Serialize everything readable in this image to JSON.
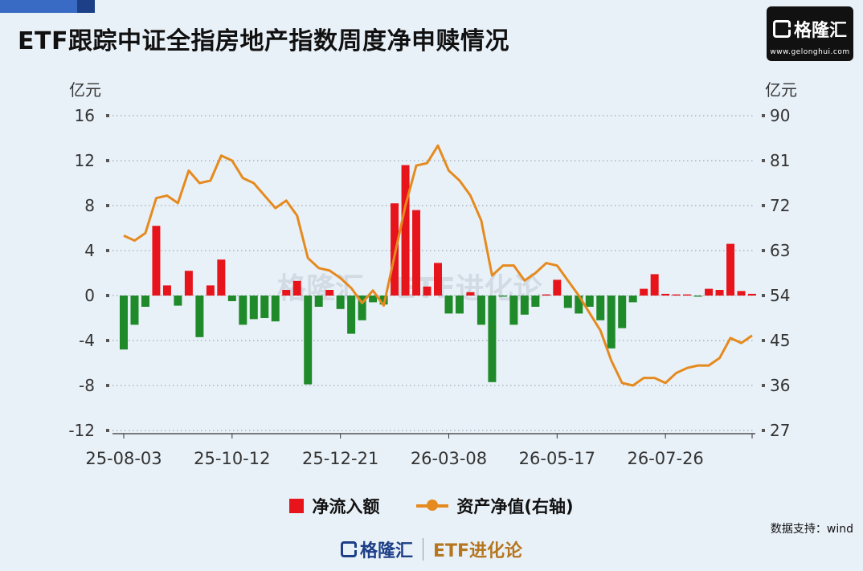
{
  "title": "ETF跟踪中证全指房地产指数周度净申赎情况",
  "logo": {
    "brand": "格隆汇",
    "url": "www.gelonghui.com"
  },
  "units": {
    "left": "亿元",
    "right": "亿元"
  },
  "legend": {
    "bar": "净流入额",
    "line": "资产净值(右轴)"
  },
  "source": "数据支持：wind",
  "footer": {
    "brand": "格隆汇",
    "etf": "ETF进化论"
  },
  "watermark": {
    "brand": "格隆汇",
    "etf": "ETF进化论"
  },
  "colors": {
    "bar_pos": "#e8141c",
    "bar_neg": "#1f8a2a",
    "line": "#e58a1f"
  },
  "chart_data": {
    "type": "bar",
    "x_tick_labels": [
      "25-08-03",
      "25-10-12",
      "25-12-21",
      "26-03-08",
      "26-05-17",
      "26-07-26"
    ],
    "y_left": {
      "lim": [
        -12,
        16
      ],
      "ticks": [
        -12,
        -8,
        -4,
        0,
        4,
        8,
        12,
        16
      ]
    },
    "y_right": {
      "lim": [
        27,
        90
      ],
      "ticks": [
        27,
        36,
        45,
        54,
        63,
        72,
        81,
        90
      ]
    },
    "series": [
      {
        "name": "净流入额",
        "type": "bar",
        "axis": "left",
        "values": [
          -4.8,
          -2.6,
          -1.0,
          6.2,
          0.9,
          -0.9,
          2.2,
          -3.7,
          0.9,
          3.2,
          -0.5,
          -2.6,
          -2.1,
          -2.0,
          -2.3,
          0.5,
          1.3,
          -7.9,
          -1.0,
          0.5,
          -1.2,
          -3.4,
          -2.2,
          -0.6,
          -0.8,
          8.2,
          11.6,
          7.6,
          0.8,
          2.9,
          -1.6,
          -1.6,
          0.3,
          -2.6,
          -7.7,
          -0.1,
          -2.6,
          -1.7,
          -1.0,
          0.1,
          1.4,
          -1.1,
          -1.6,
          -1.0,
          -2.2,
          -4.7,
          -2.9,
          -0.6,
          0.6,
          1.9,
          0.15,
          0.1,
          0.1,
          -0.1,
          0.6,
          0.5,
          4.6,
          0.4,
          0.15
        ]
      },
      {
        "name": "资产净值(右轴)",
        "type": "line",
        "axis": "right",
        "values": [
          66.0,
          65.0,
          66.5,
          73.5,
          74.0,
          72.5,
          79.0,
          76.5,
          77.0,
          82.0,
          81.0,
          77.5,
          76.5,
          74.0,
          71.5,
          73.0,
          70.0,
          61.5,
          59.5,
          59.0,
          57.5,
          55.5,
          52.5,
          55.0,
          52.0,
          62.0,
          72.0,
          80.0,
          80.5,
          84.0,
          79.0,
          77.0,
          74.0,
          69.0,
          58.0,
          60.0,
          60.0,
          57.0,
          58.5,
          60.5,
          60.0,
          57.0,
          54.0,
          50.5,
          47.0,
          41.0,
          36.5,
          36.0,
          37.5,
          37.5,
          36.5,
          38.5,
          39.5,
          40.0,
          40.0,
          41.5,
          45.5,
          44.5,
          46.0
        ]
      }
    ],
    "grid": true,
    "legend_position": "bottom"
  }
}
